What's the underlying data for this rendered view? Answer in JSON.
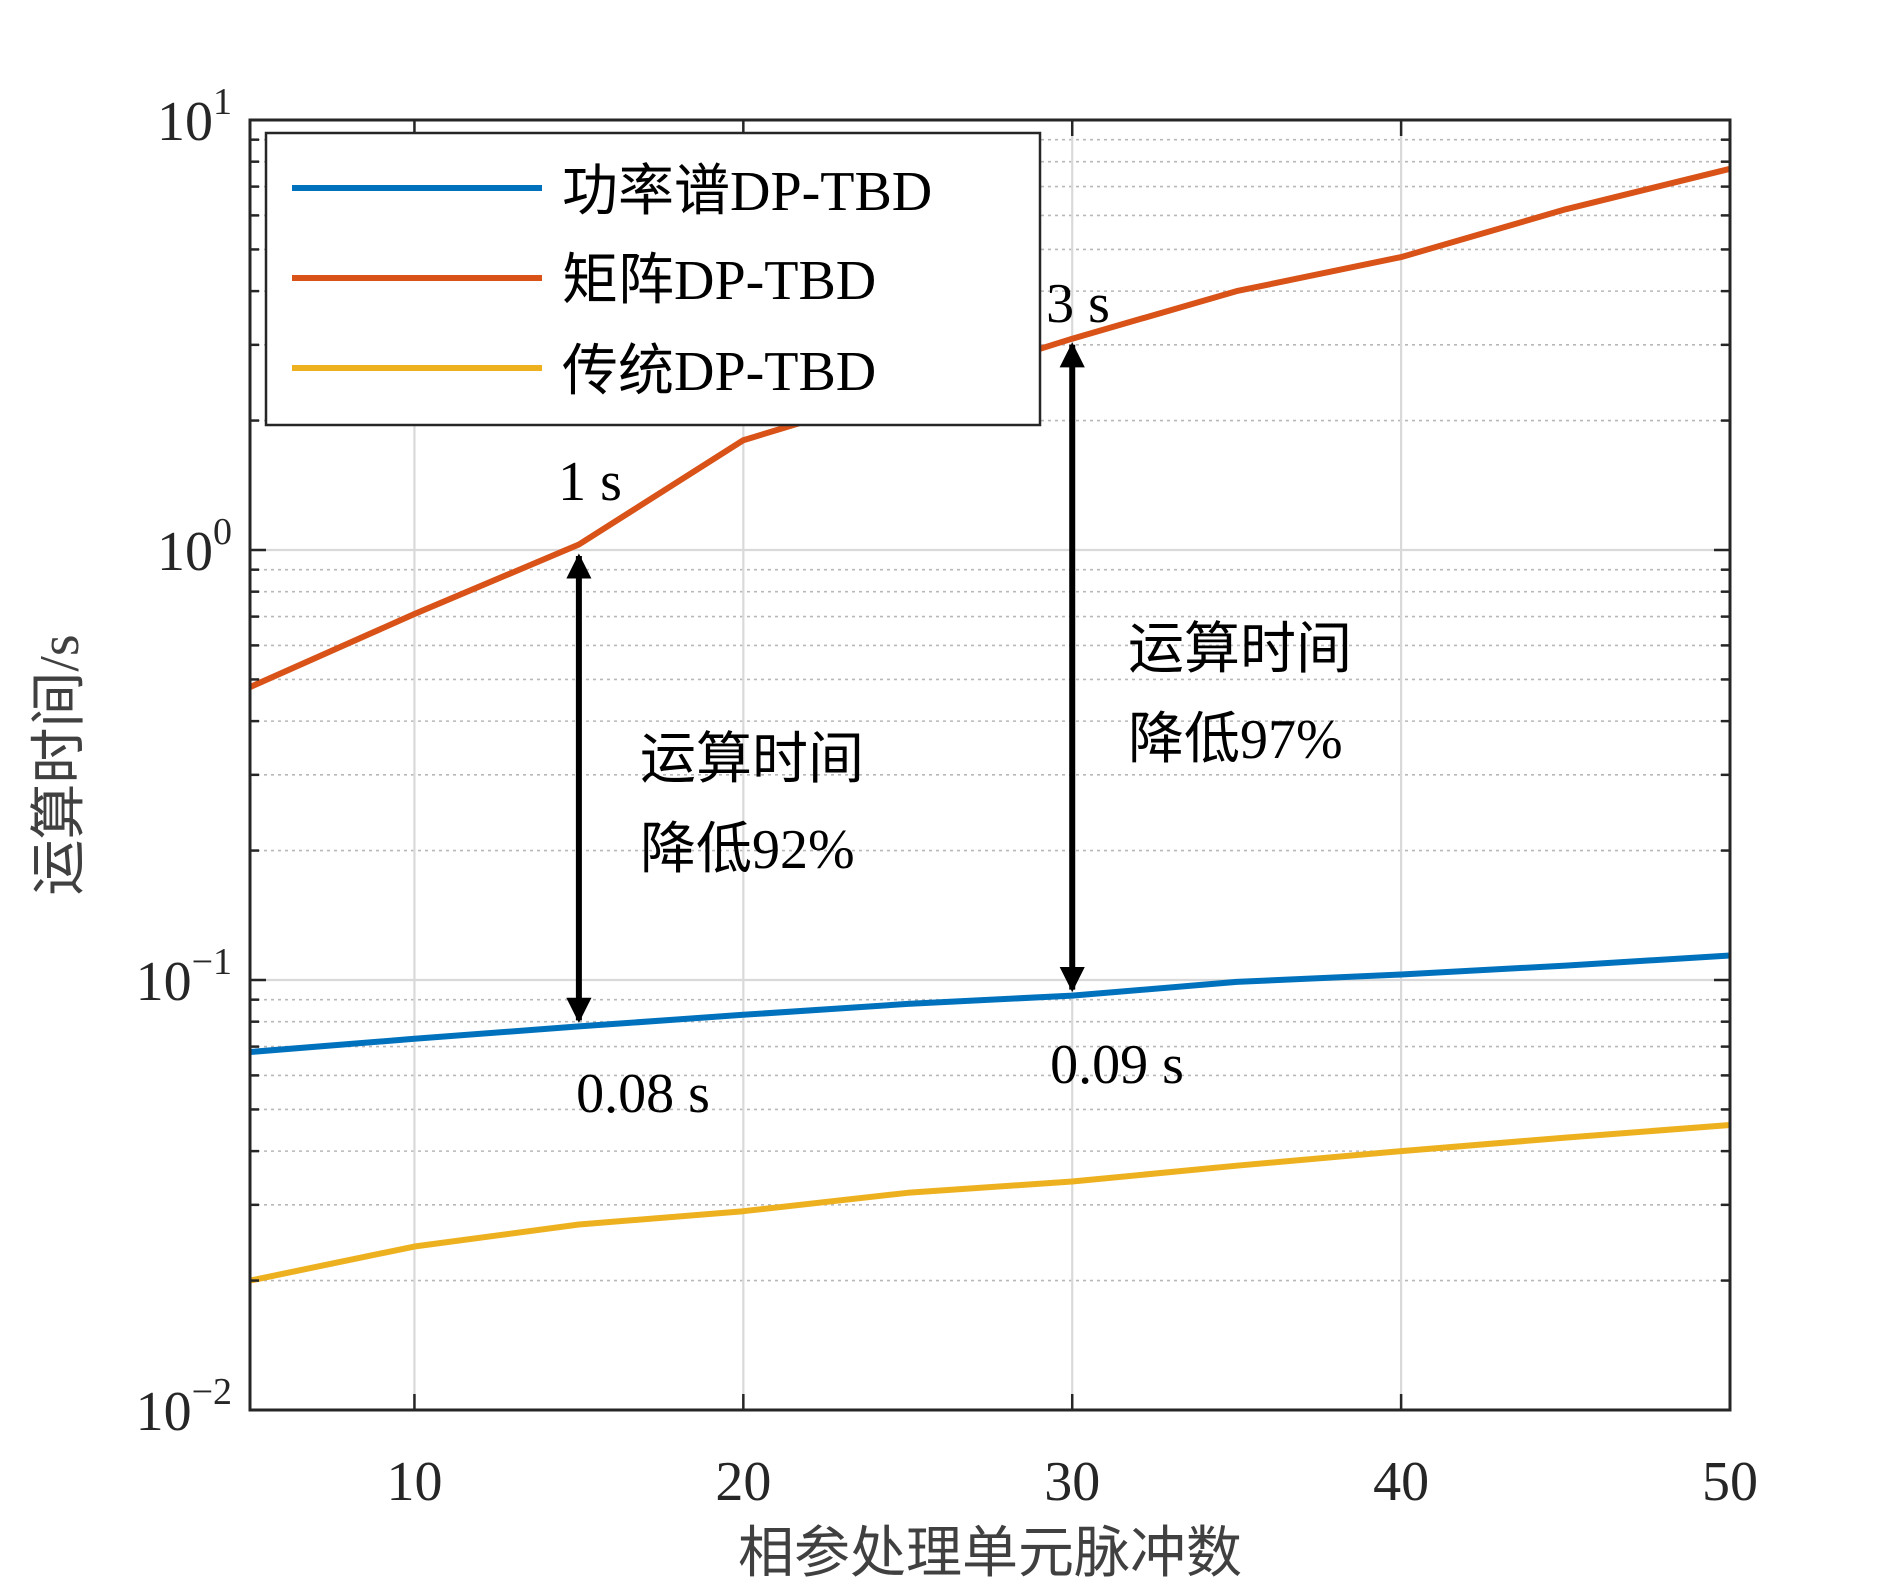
{
  "chart_data": {
    "type": "line",
    "xlabel": "相参处理单元脉冲数",
    "ylabel": "运算时间/s",
    "xlim": [
      5,
      50
    ],
    "ylim": [
      0.01,
      10
    ],
    "yscale": "log",
    "grid": true,
    "xticks": [
      10,
      20,
      30,
      40,
      50
    ],
    "xtick_labels": [
      "10",
      "20",
      "30",
      "40",
      "50"
    ],
    "yticks": [
      0.01,
      0.1,
      1,
      10
    ],
    "ytick_labels": [
      {
        "base": "10",
        "exp": "−2"
      },
      {
        "base": "10",
        "exp": "−1"
      },
      {
        "base": "10",
        "exp": "0"
      },
      {
        "base": "10",
        "exp": "1"
      }
    ],
    "legend_position": "top-left",
    "series": [
      {
        "name": "功率谱DP-TBD",
        "color": "#0072BD",
        "x": [
          5,
          10,
          15,
          20,
          25,
          30,
          35,
          40,
          45,
          50
        ],
        "y": [
          0.068,
          0.073,
          0.078,
          0.083,
          0.088,
          0.092,
          0.099,
          0.103,
          0.108,
          0.114
        ]
      },
      {
        "name": "矩阵DP-TBD",
        "color": "#D95319",
        "x": [
          5,
          10,
          15,
          20,
          25,
          30,
          35,
          40,
          45,
          50
        ],
        "y": [
          0.48,
          0.71,
          1.03,
          1.8,
          2.35,
          3.1,
          4.0,
          4.8,
          6.2,
          7.7
        ]
      },
      {
        "name": "传统DP-TBD",
        "color": "#EDB120",
        "x": [
          5,
          10,
          15,
          20,
          25,
          30,
          35,
          40,
          45,
          50
        ],
        "y": [
          0.02,
          0.024,
          0.027,
          0.029,
          0.032,
          0.034,
          0.037,
          0.04,
          0.043,
          0.046
        ]
      }
    ],
    "annotations": {
      "left_top": "1 s",
      "left_bottom": "0.08 s",
      "left_line1": "运算时间",
      "left_line2": "降低92%",
      "right_top": "3 s",
      "right_bottom": "0.09 s",
      "right_line1": "运算时间",
      "right_line2": "降低97%"
    },
    "arrows": [
      {
        "x": 15,
        "y_from": 1.0,
        "y_to": 0.078
      },
      {
        "x": 30,
        "y_from": 3.1,
        "y_to": 0.092
      }
    ]
  }
}
